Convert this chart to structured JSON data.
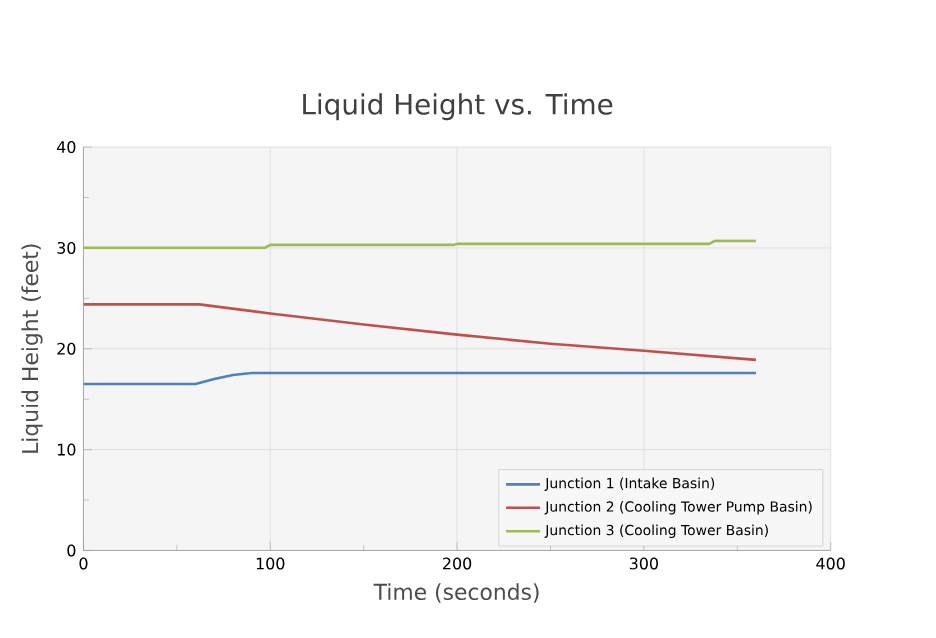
{
  "chart_data": {
    "type": "line",
    "title": "Liquid Height vs. Time",
    "xlabel": "Time (seconds)",
    "ylabel": "Liquid Height (feet)",
    "xlim": [
      0,
      400
    ],
    "ylim": [
      0,
      40
    ],
    "xticks": [
      0,
      100,
      200,
      300,
      400
    ],
    "yticks": [
      0,
      10,
      20,
      30,
      40
    ],
    "grid": true,
    "legend": "bottom right",
    "marker": "none",
    "line_style": "solid",
    "series": [
      {
        "name": "Junction 1 (Intake Basin)",
        "color": "#4f81bd",
        "x": [
          0,
          60,
          70,
          80,
          90,
          100,
          200,
          300,
          360
        ],
        "values": [
          16.5,
          16.5,
          17.0,
          17.4,
          17.6,
          17.6,
          17.6,
          17.6,
          17.6
        ]
      },
      {
        "name": "Junction 2 (Cooling Tower Pump Basin)",
        "color": "#c0504d",
        "x": [
          0,
          62,
          100,
          150,
          200,
          250,
          300,
          360
        ],
        "values": [
          24.4,
          24.4,
          23.5,
          22.4,
          21.4,
          20.5,
          19.8,
          18.9
        ]
      },
      {
        "name": "Junction 3 (Cooling Tower Basin)",
        "color": "#9bbb59",
        "x": [
          0,
          97,
          100,
          198,
          200,
          335,
          338,
          360
        ],
        "values": [
          30.0,
          30.0,
          30.3,
          30.3,
          30.4,
          30.4,
          30.7,
          30.7
        ]
      }
    ]
  }
}
